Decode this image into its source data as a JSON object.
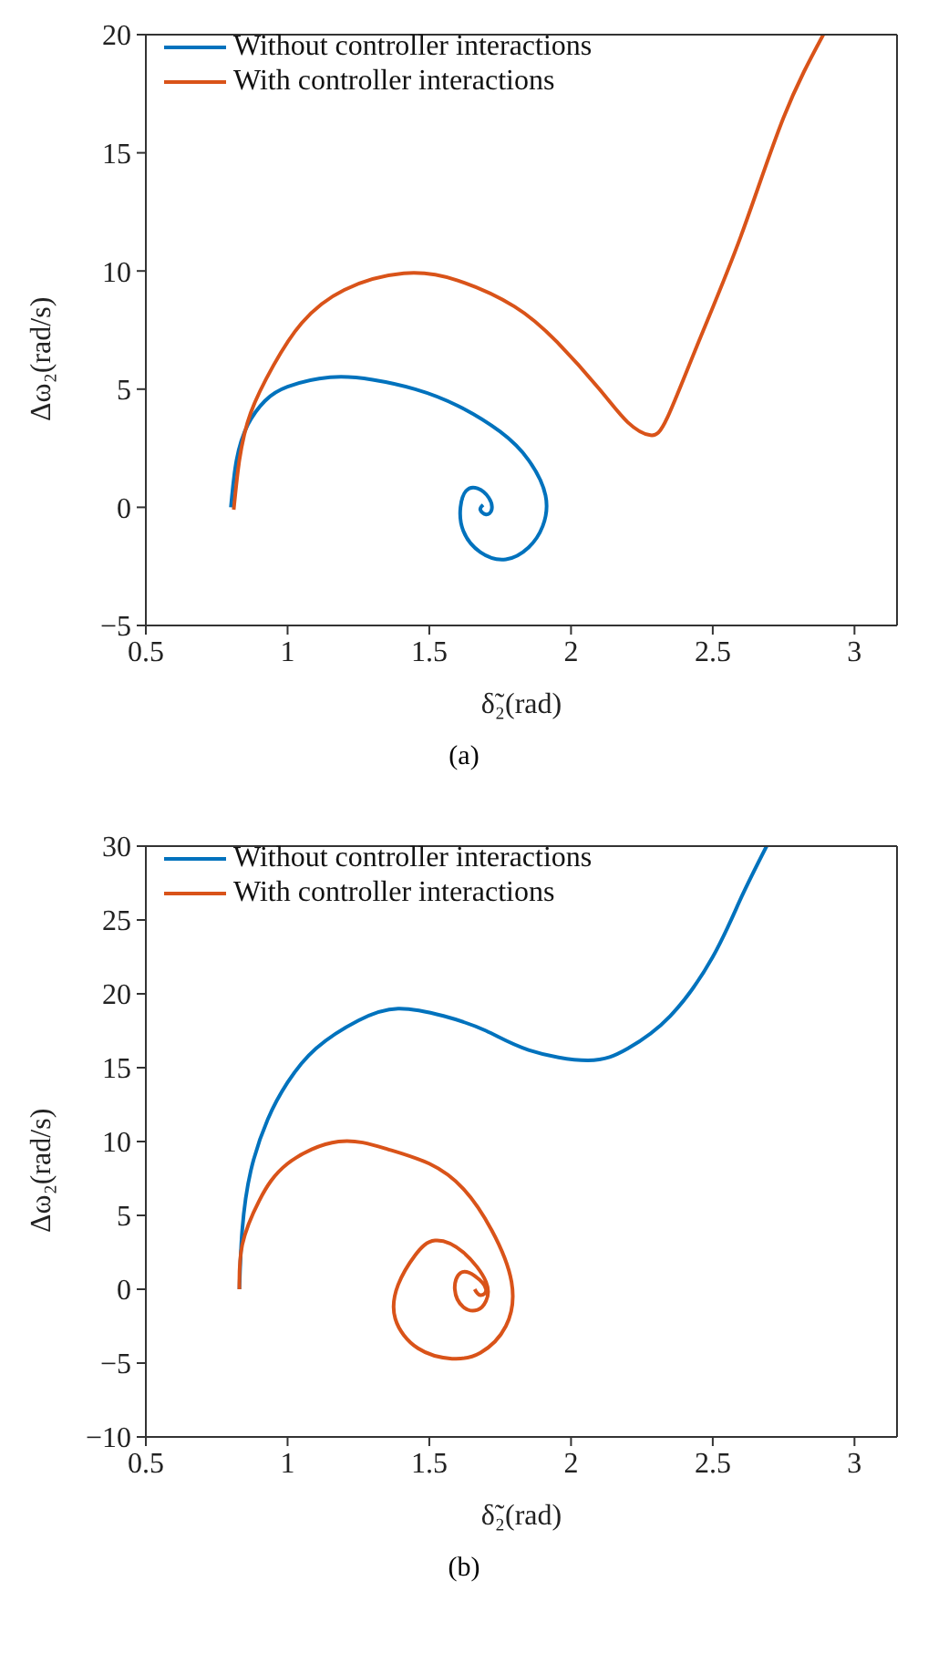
{
  "chart_data": [
    {
      "type": "line",
      "xlabel": "δ̃₂(rad)",
      "ylabel": "Δω₂(rad/s)",
      "annotations": [
        "(a)"
      ],
      "xlim": [
        0.5,
        3.15
      ],
      "xticks": [
        0.5,
        1,
        1.5,
        2,
        2.5,
        3
      ],
      "ylim": [
        -5,
        20
      ],
      "yticks": [
        -5,
        0,
        5,
        10,
        15,
        20
      ],
      "legend": "top left",
      "line_style": "solid",
      "marker": "none",
      "series": [
        {
          "name": "Without controller interactions",
          "color": "#0072bd",
          "x": [
            0.8,
            0.82,
            0.86,
            0.92,
            1.0,
            1.15,
            1.3,
            1.45,
            1.6,
            1.75,
            1.85,
            1.91,
            1.9,
            1.85,
            1.77,
            1.68,
            1.62,
            1.61,
            1.63,
            1.67,
            1.71,
            1.72,
            1.7,
            1.68,
            1.69
          ],
          "values": [
            0,
            2,
            3.5,
            4.5,
            5.1,
            5.5,
            5.4,
            5,
            4.3,
            3.2,
            2,
            0.5,
            -0.8,
            -1.7,
            -2.2,
            -1.9,
            -1,
            0,
            0.7,
            0.8,
            0.4,
            -0.1,
            -0.3,
            -0.1,
            0.1
          ]
        },
        {
          "name": "With controller interactions",
          "color": "#d95319",
          "x": [
            0.81,
            0.83,
            0.87,
            0.95,
            1.05,
            1.2,
            1.41,
            1.6,
            1.8,
            1.95,
            2.1,
            2.2,
            2.28,
            2.34,
            2.45,
            2.6,
            2.75,
            2.89
          ],
          "values": [
            -0.1,
            2,
            4,
            6,
            7.8,
            9.2,
            9.9,
            9.6,
            8.5,
            7,
            5,
            3.6,
            3.05,
            3.8,
            7,
            11.5,
            16.5,
            20
          ]
        }
      ]
    },
    {
      "type": "line",
      "xlabel": "δ̃₂(rad)",
      "ylabel": "Δω₂(rad/s)",
      "annotations": [
        "(b)"
      ],
      "xlim": [
        0.5,
        3.15
      ],
      "xticks": [
        0.5,
        1,
        1.5,
        2,
        2.5,
        3
      ],
      "ylim": [
        -10,
        30
      ],
      "yticks": [
        -10,
        -5,
        0,
        5,
        10,
        15,
        20,
        25,
        30
      ],
      "legend": "top left",
      "line_style": "solid",
      "marker": "none",
      "series": [
        {
          "name": "Without controller interactions",
          "color": "#0072bd",
          "x": [
            0.83,
            0.84,
            0.87,
            0.93,
            1.0,
            1.1,
            1.25,
            1.39,
            1.55,
            1.7,
            1.85,
            2.06,
            2.2,
            2.35,
            2.5,
            2.6,
            2.69
          ],
          "values": [
            0,
            4,
            8,
            11.5,
            14,
            16.3,
            18.2,
            19,
            18.5,
            17.5,
            16.2,
            15.5,
            16.3,
            18.5,
            22.5,
            26.5,
            30
          ]
        },
        {
          "name": "With controller interactions",
          "color": "#d95319",
          "x": [
            0.83,
            0.84,
            0.9,
            1.0,
            1.18,
            1.35,
            1.5,
            1.62,
            1.72,
            1.79,
            1.77,
            1.68,
            1.58,
            1.46,
            1.38,
            1.39,
            1.45,
            1.52,
            1.62,
            1.7,
            1.7,
            1.67,
            1.62,
            1.59,
            1.61,
            1.66,
            1.7,
            1.68,
            1.66
          ],
          "values": [
            0,
            3,
            6,
            8.5,
            10,
            9.5,
            8.5,
            6.8,
            4,
            0.5,
            -2.5,
            -4.3,
            -4.7,
            -4,
            -2,
            0.3,
            2.3,
            3.3,
            2.5,
            0.5,
            -0.8,
            -1.4,
            -1.2,
            0,
            1.1,
            0.9,
            0,
            -0.4,
            0
          ]
        }
      ]
    }
  ]
}
